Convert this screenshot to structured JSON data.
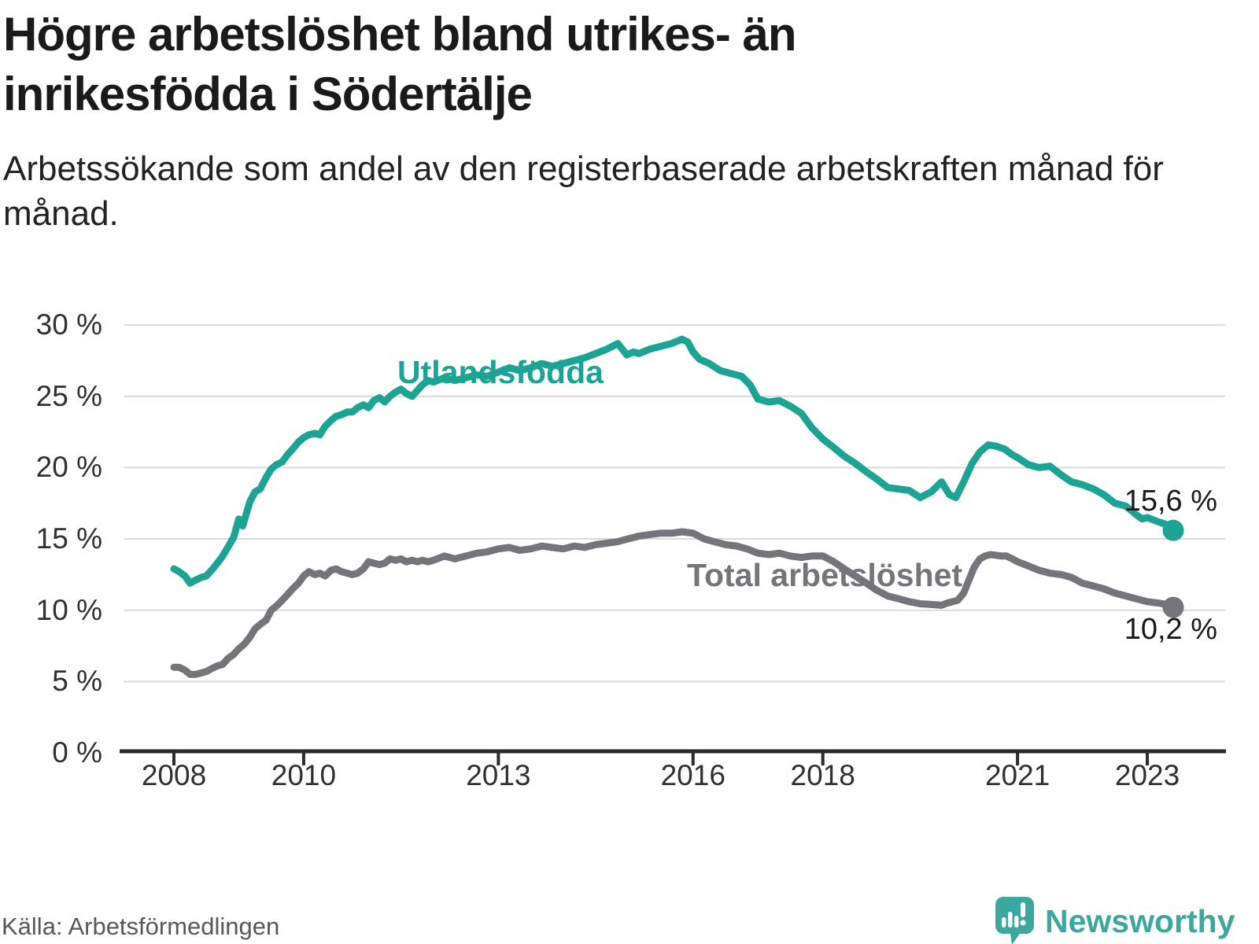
{
  "header": {
    "title": "Högre arbetslöshet bland utrikes- än inrikesfödda i Södertälje",
    "subtitle": "Arbetssökande som andel av den registerbaserade arbetskraften månad för månad."
  },
  "footer": {
    "source": "Källa: Arbetsförmedlingen",
    "brand": "Newsworthy"
  },
  "colors": {
    "foreign_line": "#1BA394",
    "total_line": "#76747A",
    "end_label_text": "#1A1A1A",
    "axis": "#2B2B2B",
    "grid": "#D9D9D9",
    "tick_text": "#303030",
    "brand_teal": "#3CA79C",
    "source_text": "#575757"
  },
  "chart_data": {
    "type": "line",
    "title": "Högre arbetslöshet bland utrikes- än inrikesfödda i Södertälje",
    "xlabel": "",
    "ylabel": "Arbetssökande som andel av den registerbaserade arbetskraften",
    "grid": true,
    "x_axis": {
      "range": [
        2008,
        2023.42
      ],
      "ticks": [
        {
          "v": 2008,
          "label": "2008"
        },
        {
          "v": 2010,
          "label": "2010"
        },
        {
          "v": 2013,
          "label": "2013"
        },
        {
          "v": 2016,
          "label": "2016"
        },
        {
          "v": 2018,
          "label": "2018"
        },
        {
          "v": 2021,
          "label": "2021"
        },
        {
          "v": 2023,
          "label": "2023"
        }
      ]
    },
    "y_axis": {
      "unit": "%",
      "range": [
        0,
        30
      ],
      "ticks": [
        {
          "v": 0,
          "label": "0 %"
        },
        {
          "v": 5,
          "label": "5 %"
        },
        {
          "v": 10,
          "label": "10 %"
        },
        {
          "v": 15,
          "label": "15 %"
        },
        {
          "v": 20,
          "label": "20 %"
        },
        {
          "v": 25,
          "label": "25 %"
        },
        {
          "v": 30,
          "label": "30 %"
        }
      ]
    },
    "series": [
      {
        "name": "Utlandsfödda",
        "color": "#1BA394",
        "end_label": "15,6 %",
        "end_value": 15.6,
        "points": [
          [
            2008.0,
            12.9
          ],
          [
            2008.08,
            12.7
          ],
          [
            2008.17,
            12.4
          ],
          [
            2008.25,
            11.9
          ],
          [
            2008.33,
            12.1
          ],
          [
            2008.42,
            12.3
          ],
          [
            2008.5,
            12.4
          ],
          [
            2008.58,
            12.8
          ],
          [
            2008.67,
            13.3
          ],
          [
            2008.75,
            13.8
          ],
          [
            2008.83,
            14.4
          ],
          [
            2008.92,
            15.1
          ],
          [
            2009.0,
            16.4
          ],
          [
            2009.06,
            15.9
          ],
          [
            2009.17,
            17.6
          ],
          [
            2009.25,
            18.3
          ],
          [
            2009.33,
            18.5
          ],
          [
            2009.42,
            19.3
          ],
          [
            2009.5,
            19.9
          ],
          [
            2009.58,
            20.2
          ],
          [
            2009.67,
            20.4
          ],
          [
            2009.75,
            20.9
          ],
          [
            2009.83,
            21.3
          ],
          [
            2009.92,
            21.8
          ],
          [
            2010.0,
            22.1
          ],
          [
            2010.08,
            22.3
          ],
          [
            2010.17,
            22.4
          ],
          [
            2010.25,
            22.3
          ],
          [
            2010.33,
            22.9
          ],
          [
            2010.42,
            23.3
          ],
          [
            2010.5,
            23.6
          ],
          [
            2010.58,
            23.7
          ],
          [
            2010.67,
            23.9
          ],
          [
            2010.75,
            23.9
          ],
          [
            2010.83,
            24.2
          ],
          [
            2010.92,
            24.4
          ],
          [
            2011.0,
            24.2
          ],
          [
            2011.08,
            24.7
          ],
          [
            2011.17,
            24.9
          ],
          [
            2011.25,
            24.6
          ],
          [
            2011.33,
            25.0
          ],
          [
            2011.42,
            25.3
          ],
          [
            2011.5,
            25.5
          ],
          [
            2011.58,
            25.2
          ],
          [
            2011.67,
            25.0
          ],
          [
            2011.75,
            25.4
          ],
          [
            2011.83,
            25.8
          ],
          [
            2011.92,
            26.1
          ],
          [
            2012.0,
            26.0
          ],
          [
            2012.17,
            26.3
          ],
          [
            2012.33,
            26.1
          ],
          [
            2012.5,
            26.3
          ],
          [
            2012.67,
            26.5
          ],
          [
            2012.83,
            26.4
          ],
          [
            2013.0,
            26.7
          ],
          [
            2013.17,
            27.0
          ],
          [
            2013.33,
            26.8
          ],
          [
            2013.5,
            27.0
          ],
          [
            2013.67,
            27.3
          ],
          [
            2013.83,
            27.1
          ],
          [
            2014.0,
            27.3
          ],
          [
            2014.17,
            27.5
          ],
          [
            2014.33,
            27.7
          ],
          [
            2014.5,
            28.0
          ],
          [
            2014.67,
            28.3
          ],
          [
            2014.84,
            28.7
          ],
          [
            2014.98,
            27.9
          ],
          [
            2015.08,
            28.1
          ],
          [
            2015.17,
            28.0
          ],
          [
            2015.33,
            28.3
          ],
          [
            2015.5,
            28.5
          ],
          [
            2015.67,
            28.7
          ],
          [
            2015.83,
            29.0
          ],
          [
            2015.92,
            28.8
          ],
          [
            2016.0,
            28.1
          ],
          [
            2016.1,
            27.6
          ],
          [
            2016.25,
            27.3
          ],
          [
            2016.42,
            26.8
          ],
          [
            2016.58,
            26.6
          ],
          [
            2016.75,
            26.4
          ],
          [
            2016.88,
            25.8
          ],
          [
            2017.0,
            24.8
          ],
          [
            2017.17,
            24.6
          ],
          [
            2017.33,
            24.7
          ],
          [
            2017.5,
            24.3
          ],
          [
            2017.67,
            23.8
          ],
          [
            2017.83,
            22.8
          ],
          [
            2018.0,
            22.0
          ],
          [
            2018.17,
            21.4
          ],
          [
            2018.33,
            20.8
          ],
          [
            2018.5,
            20.3
          ],
          [
            2018.67,
            19.7
          ],
          [
            2018.83,
            19.2
          ],
          [
            2019.0,
            18.6
          ],
          [
            2019.17,
            18.5
          ],
          [
            2019.33,
            18.4
          ],
          [
            2019.5,
            17.9
          ],
          [
            2019.67,
            18.3
          ],
          [
            2019.83,
            19.0
          ],
          [
            2019.95,
            18.1
          ],
          [
            2020.05,
            17.9
          ],
          [
            2020.17,
            19.0
          ],
          [
            2020.3,
            20.3
          ],
          [
            2020.42,
            21.1
          ],
          [
            2020.55,
            21.6
          ],
          [
            2020.67,
            21.5
          ],
          [
            2020.8,
            21.3
          ],
          [
            2020.92,
            20.9
          ],
          [
            2021.0,
            20.7
          ],
          [
            2021.17,
            20.2
          ],
          [
            2021.33,
            20.0
          ],
          [
            2021.5,
            20.1
          ],
          [
            2021.67,
            19.5
          ],
          [
            2021.83,
            19.0
          ],
          [
            2022.0,
            18.8
          ],
          [
            2022.17,
            18.5
          ],
          [
            2022.33,
            18.1
          ],
          [
            2022.5,
            17.5
          ],
          [
            2022.67,
            17.3
          ],
          [
            2022.83,
            16.7
          ],
          [
            2022.92,
            16.4
          ],
          [
            2023.0,
            16.5
          ],
          [
            2023.17,
            16.2
          ],
          [
            2023.3,
            16.0
          ],
          [
            2023.4,
            15.6
          ]
        ]
      },
      {
        "name": "Total arbetslöshet",
        "color": "#76747A",
        "end_label": "10,2 %",
        "end_value": 10.2,
        "points": [
          [
            2008.0,
            6.0
          ],
          [
            2008.08,
            6.0
          ],
          [
            2008.17,
            5.8
          ],
          [
            2008.25,
            5.5
          ],
          [
            2008.33,
            5.5
          ],
          [
            2008.42,
            5.6
          ],
          [
            2008.5,
            5.7
          ],
          [
            2008.58,
            5.9
          ],
          [
            2008.67,
            6.1
          ],
          [
            2008.75,
            6.2
          ],
          [
            2008.83,
            6.6
          ],
          [
            2008.92,
            6.9
          ],
          [
            2009.0,
            7.3
          ],
          [
            2009.08,
            7.6
          ],
          [
            2009.17,
            8.1
          ],
          [
            2009.25,
            8.7
          ],
          [
            2009.33,
            9.0
          ],
          [
            2009.42,
            9.3
          ],
          [
            2009.5,
            10.0
          ],
          [
            2009.58,
            10.3
          ],
          [
            2009.67,
            10.7
          ],
          [
            2009.75,
            11.1
          ],
          [
            2009.83,
            11.5
          ],
          [
            2009.92,
            11.9
          ],
          [
            2010.0,
            12.4
          ],
          [
            2010.08,
            12.7
          ],
          [
            2010.17,
            12.5
          ],
          [
            2010.25,
            12.6
          ],
          [
            2010.33,
            12.4
          ],
          [
            2010.42,
            12.8
          ],
          [
            2010.5,
            12.9
          ],
          [
            2010.58,
            12.7
          ],
          [
            2010.67,
            12.6
          ],
          [
            2010.75,
            12.5
          ],
          [
            2010.83,
            12.6
          ],
          [
            2010.92,
            12.9
          ],
          [
            2011.0,
            13.4
          ],
          [
            2011.08,
            13.3
          ],
          [
            2011.17,
            13.2
          ],
          [
            2011.25,
            13.3
          ],
          [
            2011.33,
            13.6
          ],
          [
            2011.42,
            13.5
          ],
          [
            2011.5,
            13.6
          ],
          [
            2011.58,
            13.4
          ],
          [
            2011.67,
            13.5
          ],
          [
            2011.75,
            13.4
          ],
          [
            2011.83,
            13.5
          ],
          [
            2011.92,
            13.4
          ],
          [
            2012.0,
            13.5
          ],
          [
            2012.17,
            13.8
          ],
          [
            2012.33,
            13.6
          ],
          [
            2012.5,
            13.8
          ],
          [
            2012.67,
            14.0
          ],
          [
            2012.83,
            14.1
          ],
          [
            2013.0,
            14.3
          ],
          [
            2013.17,
            14.4
          ],
          [
            2013.33,
            14.2
          ],
          [
            2013.5,
            14.3
          ],
          [
            2013.67,
            14.5
          ],
          [
            2013.83,
            14.4
          ],
          [
            2014.0,
            14.3
          ],
          [
            2014.17,
            14.5
          ],
          [
            2014.33,
            14.4
          ],
          [
            2014.5,
            14.6
          ],
          [
            2014.67,
            14.7
          ],
          [
            2014.83,
            14.8
          ],
          [
            2015.0,
            15.0
          ],
          [
            2015.17,
            15.2
          ],
          [
            2015.33,
            15.3
          ],
          [
            2015.5,
            15.4
          ],
          [
            2015.67,
            15.4
          ],
          [
            2015.83,
            15.5
          ],
          [
            2016.0,
            15.4
          ],
          [
            2016.17,
            15.0
          ],
          [
            2016.33,
            14.8
          ],
          [
            2016.5,
            14.6
          ],
          [
            2016.67,
            14.5
          ],
          [
            2016.83,
            14.3
          ],
          [
            2017.0,
            14.0
          ],
          [
            2017.17,
            13.9
          ],
          [
            2017.33,
            14.0
          ],
          [
            2017.5,
            13.8
          ],
          [
            2017.67,
            13.7
          ],
          [
            2017.83,
            13.8
          ],
          [
            2018.0,
            13.8
          ],
          [
            2018.17,
            13.4
          ],
          [
            2018.33,
            12.9
          ],
          [
            2018.5,
            12.4
          ],
          [
            2018.67,
            11.9
          ],
          [
            2018.83,
            11.4
          ],
          [
            2019.0,
            11.0
          ],
          [
            2019.17,
            10.8
          ],
          [
            2019.33,
            10.6
          ],
          [
            2019.5,
            10.45
          ],
          [
            2019.67,
            10.4
          ],
          [
            2019.83,
            10.35
          ],
          [
            2019.92,
            10.5
          ],
          [
            2020.0,
            10.6
          ],
          [
            2020.08,
            10.7
          ],
          [
            2020.17,
            11.2
          ],
          [
            2020.25,
            12.1
          ],
          [
            2020.33,
            13.0
          ],
          [
            2020.42,
            13.6
          ],
          [
            2020.5,
            13.8
          ],
          [
            2020.58,
            13.9
          ],
          [
            2020.67,
            13.85
          ],
          [
            2020.75,
            13.8
          ],
          [
            2020.83,
            13.8
          ],
          [
            2020.92,
            13.6
          ],
          [
            2021.0,
            13.4
          ],
          [
            2021.17,
            13.1
          ],
          [
            2021.33,
            12.8
          ],
          [
            2021.5,
            12.6
          ],
          [
            2021.67,
            12.5
          ],
          [
            2021.83,
            12.3
          ],
          [
            2022.0,
            11.9
          ],
          [
            2022.17,
            11.7
          ],
          [
            2022.33,
            11.5
          ],
          [
            2022.5,
            11.2
          ],
          [
            2022.67,
            11.0
          ],
          [
            2022.83,
            10.8
          ],
          [
            2023.0,
            10.6
          ],
          [
            2023.17,
            10.5
          ],
          [
            2023.3,
            10.4
          ],
          [
            2023.4,
            10.2
          ]
        ]
      }
    ]
  }
}
